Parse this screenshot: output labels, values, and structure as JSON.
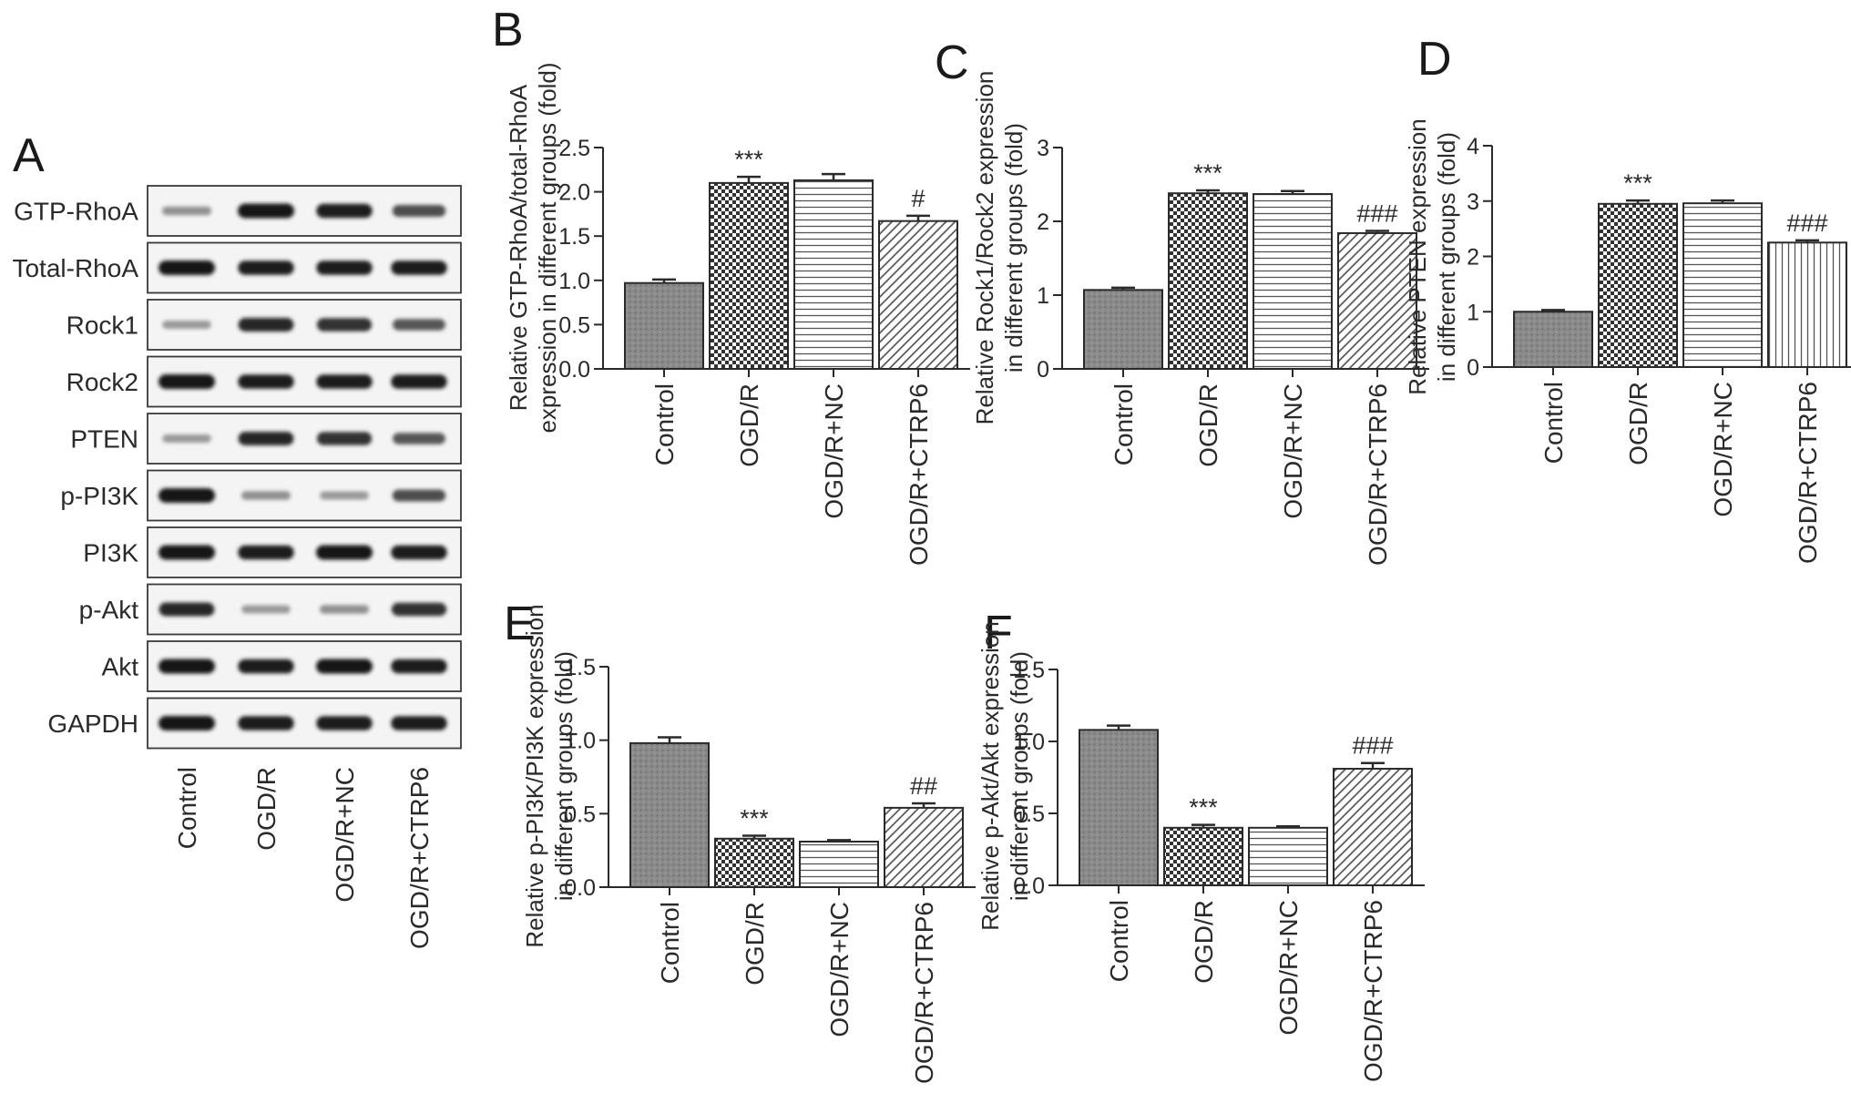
{
  "blot_panel": {
    "letter": "A",
    "rows": [
      "GTP-RhoA",
      "Total-RhoA",
      "Rock1",
      "Rock2",
      "PTEN",
      "p-PI3K",
      "PI3K",
      "p-Akt",
      "Akt",
      "GAPDH"
    ],
    "lanes": [
      "Control",
      "OGD/R",
      "OGD/R+NC",
      "OGD/R+CTRP6"
    ],
    "band_intensity": [
      [
        0.35,
        1.0,
        0.95,
        0.7
      ],
      [
        1.0,
        0.95,
        0.95,
        0.95
      ],
      [
        0.3,
        0.9,
        0.85,
        0.65
      ],
      [
        1.0,
        0.95,
        0.95,
        0.95
      ],
      [
        0.3,
        0.9,
        0.85,
        0.65
      ],
      [
        1.0,
        0.35,
        0.3,
        0.7
      ],
      [
        1.0,
        0.95,
        1.0,
        0.95
      ],
      [
        0.9,
        0.3,
        0.35,
        0.85
      ],
      [
        1.0,
        0.95,
        1.0,
        0.95
      ],
      [
        1.0,
        0.95,
        0.95,
        0.95
      ]
    ]
  },
  "chart_data": [
    {
      "panel": "B",
      "type": "bar",
      "categories": [
        "Control",
        "OGD/R",
        "OGD/R+NC",
        "OGD/R+CTRP6"
      ],
      "values": [
        0.97,
        2.1,
        2.13,
        1.67
      ],
      "errors": [
        0.04,
        0.07,
        0.07,
        0.06
      ],
      "significance": [
        "",
        "***",
        "",
        "#"
      ],
      "patterns": [
        "solid",
        "checker",
        "horizontal",
        "diagonal"
      ],
      "ylabel_lines": [
        "Relative GTP-RhoA/total-RhoA",
        "expression in different groups (fold)"
      ],
      "ylim": [
        0,
        2.5
      ],
      "yticks": [
        0.0,
        0.5,
        1.0,
        1.5,
        2.0,
        2.5
      ],
      "ytick_labels": [
        "0.0",
        "0.5",
        "1.0",
        "1.5",
        "2.0",
        "2.5"
      ]
    },
    {
      "panel": "C",
      "type": "bar",
      "categories": [
        "Control",
        "OGD/R",
        "OGD/R+NC",
        "OGD/R+CTRP6"
      ],
      "values": [
        1.07,
        2.38,
        2.37,
        1.84
      ],
      "errors": [
        0.03,
        0.04,
        0.04,
        0.03
      ],
      "significance": [
        "",
        "***",
        "",
        "###"
      ],
      "patterns": [
        "solid",
        "checker",
        "horizontal",
        "diagonal"
      ],
      "ylabel_lines": [
        "Relative Rock1/Rock2 expression",
        "in different groups (fold)"
      ],
      "ylim": [
        0,
        3
      ],
      "yticks": [
        0,
        1,
        2,
        3
      ],
      "ytick_labels": [
        "0",
        "1",
        "2",
        "3"
      ]
    },
    {
      "panel": "D",
      "type": "bar",
      "categories": [
        "Control",
        "OGD/R",
        "OGD/R+NC",
        "OGD/R+CTRP6"
      ],
      "values": [
        1.0,
        2.95,
        2.96,
        2.25
      ],
      "errors": [
        0.03,
        0.06,
        0.05,
        0.04
      ],
      "significance": [
        "",
        "***",
        "",
        "###"
      ],
      "patterns": [
        "solid",
        "checker",
        "horizontal",
        "vertical"
      ],
      "ylabel_lines": [
        "Relative PTEN expression",
        "in different groups (fold)"
      ],
      "ylim": [
        0,
        4
      ],
      "yticks": [
        0,
        1,
        2,
        3,
        4
      ],
      "ytick_labels": [
        "0",
        "1",
        "2",
        "3",
        "4"
      ]
    },
    {
      "panel": "E",
      "type": "bar",
      "categories": [
        "Control",
        "OGD/R",
        "OGD/R+NC",
        "OGD/R+CTRP6"
      ],
      "values": [
        0.98,
        0.33,
        0.31,
        0.54
      ],
      "errors": [
        0.04,
        0.02,
        0.01,
        0.03
      ],
      "significance": [
        "",
        "***",
        "",
        "##"
      ],
      "patterns": [
        "solid",
        "checker",
        "horizontal",
        "diagonal"
      ],
      "ylabel_lines": [
        "Relative p-PI3K/PI3K expression",
        "in different groups (fold)"
      ],
      "ylim": [
        0,
        1.5
      ],
      "yticks": [
        0.0,
        0.5,
        1.0,
        1.5
      ],
      "ytick_labels": [
        "0.0",
        "0.5",
        "1.0",
        "1.5"
      ]
    },
    {
      "panel": "F",
      "type": "bar",
      "categories": [
        "Control",
        "OGD/R",
        "OGD/R+NC",
        "OGD/R+CTRP6"
      ],
      "values": [
        1.08,
        0.4,
        0.4,
        0.81
      ],
      "errors": [
        0.03,
        0.02,
        0.01,
        0.04
      ],
      "significance": [
        "",
        "***",
        "",
        "###"
      ],
      "patterns": [
        "solid",
        "checker",
        "horizontal",
        "diagonal"
      ],
      "ylabel_lines": [
        "Relative p-Akt/Akt expression",
        "in different groups (fold)"
      ],
      "ylim": [
        0,
        1.5
      ],
      "yticks": [
        0.0,
        0.5,
        1.0,
        1.5
      ],
      "ytick_labels": [
        "0.0",
        "0.5",
        "1.0",
        "1.5"
      ]
    }
  ]
}
